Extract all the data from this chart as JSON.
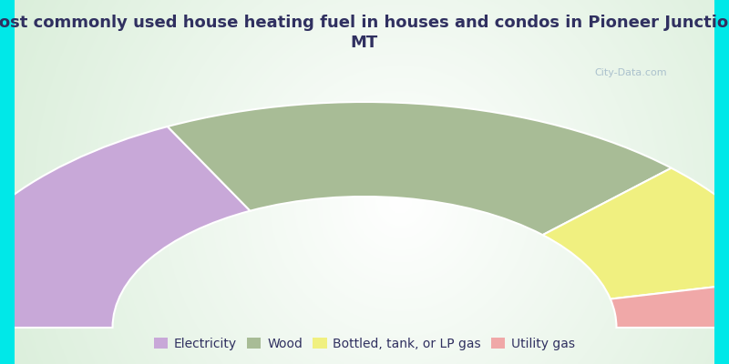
{
  "title": "Most commonly used house heating fuel in houses and condos in Pioneer Junction,\nMT",
  "segments": [
    {
      "label": "Electricity",
      "value": 35,
      "color": "#c8a8d8"
    },
    {
      "label": "Wood",
      "value": 40,
      "color": "#a8bc96"
    },
    {
      "label": "Bottled, tank, or LP gas",
      "value": 18,
      "color": "#f0f080"
    },
    {
      "label": "Utility gas",
      "value": 7,
      "color": "#f0a8a8"
    }
  ],
  "background_color": "#00e8e8",
  "title_color": "#303060",
  "legend_color": "#303060",
  "title_fontsize": 13,
  "legend_fontsize": 10,
  "watermark": "City-Data.com",
  "watermark_color": "#a0b8c8"
}
